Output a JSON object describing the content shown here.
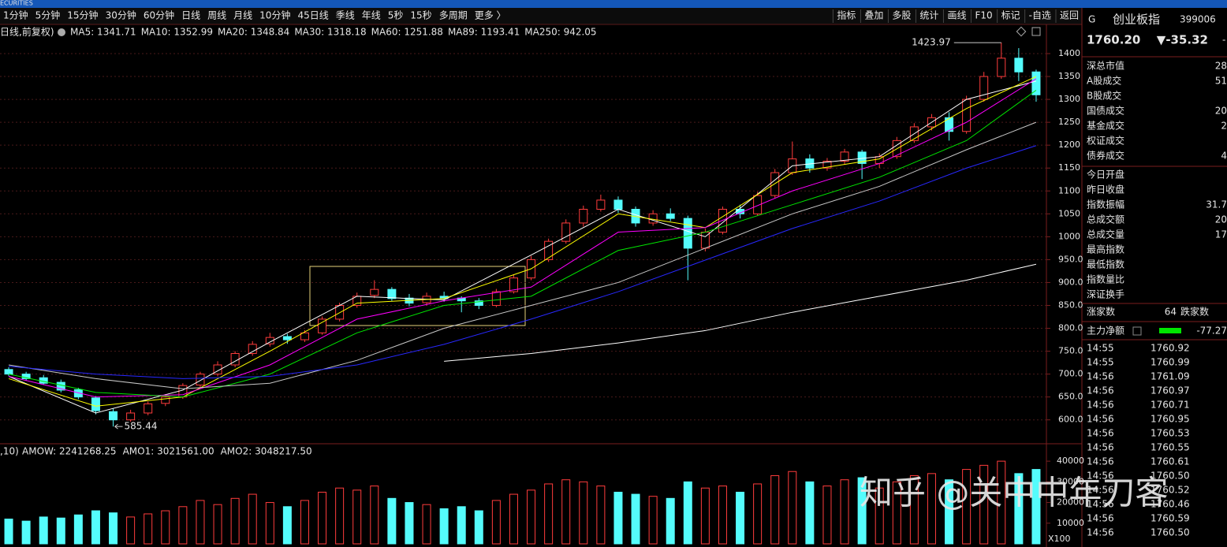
{
  "top_bar": {
    "brand": "ECURITIES"
  },
  "toolbar": {
    "periods": [
      "1分钟",
      "5分钟",
      "15分钟",
      "30分钟",
      "60分钟",
      "日线",
      "周线",
      "月线",
      "10分钟",
      "45日线",
      "季线",
      "年线",
      "5秒",
      "15秒",
      "多周期",
      "更多 〉"
    ],
    "tools": [
      "指标",
      "叠加",
      "多股",
      "统计",
      "画线",
      "F10",
      "标记",
      "-自选",
      "返回"
    ]
  },
  "chart_data": [
    {
      "type": "candlestick",
      "legend_prefix": "日线,前复权)",
      "ylim": [
        553,
        1431
      ],
      "yticks": [
        {
          "value": 600,
          "label": "600.0"
        },
        {
          "value": 650,
          "label": "650.0"
        },
        {
          "value": 700,
          "label": "700.0"
        },
        {
          "value": 750,
          "label": "750.0"
        },
        {
          "value": 800,
          "label": "800.0"
        },
        {
          "value": 850,
          "label": "850.0"
        },
        {
          "value": 900,
          "label": "900.0"
        },
        {
          "value": 950,
          "label": "950.0"
        },
        1000,
        1050,
        1100,
        1150,
        1200,
        1250,
        1300,
        1350,
        1400
      ],
      "grid": true,
      "up_color": "#ff3c3c",
      "down_color": "#54fcfc",
      "candles": [
        [
          710,
          715,
          696,
          700
        ],
        [
          700,
          705,
          686,
          690
        ],
        [
          692,
          698,
          676,
          680
        ],
        [
          682,
          688,
          660,
          665
        ],
        [
          666,
          670,
          645,
          650
        ],
        [
          648,
          652,
          612,
          620
        ],
        [
          618,
          625,
          585.44,
          600
        ],
        [
          600,
          622,
          596,
          615
        ],
        [
          615,
          640,
          610,
          635
        ],
        [
          636,
          656,
          630,
          650
        ],
        [
          650,
          680,
          646,
          675
        ],
        [
          676,
          705,
          670,
          700
        ],
        [
          700,
          728,
          695,
          720
        ],
        [
          720,
          750,
          715,
          745
        ],
        [
          745,
          772,
          740,
          765
        ],
        [
          766,
          790,
          760,
          780
        ],
        [
          782,
          788,
          766,
          775
        ],
        [
          775,
          796,
          770,
          790
        ],
        [
          790,
          826,
          786,
          820
        ],
        [
          820,
          856,
          815,
          850
        ],
        [
          850,
          878,
          845,
          870
        ],
        [
          872,
          905,
          866,
          885
        ],
        [
          885,
          890,
          860,
          865
        ],
        [
          866,
          875,
          848,
          855
        ],
        [
          856,
          878,
          850,
          870
        ],
        [
          870,
          880,
          858,
          865
        ],
        [
          866,
          870,
          835,
          860
        ],
        [
          860,
          866,
          842,
          850
        ],
        [
          850,
          886,
          846,
          880
        ],
        [
          880,
          918,
          876,
          910
        ],
        [
          910,
          958,
          905,
          950
        ],
        [
          950,
          996,
          945,
          990
        ],
        [
          990,
          1038,
          985,
          1030
        ],
        [
          1030,
          1068,
          1022,
          1060
        ],
        [
          1060,
          1092,
          1055,
          1080
        ],
        [
          1080,
          1088,
          1052,
          1060
        ],
        [
          1060,
          1066,
          1022,
          1030
        ],
        [
          1030,
          1058,
          1024,
          1050
        ],
        [
          1050,
          1062,
          1034,
          1040
        ],
        [
          1040,
          1046,
          905,
          975
        ],
        [
          975,
          1018,
          968,
          1010
        ],
        [
          1010,
          1066,
          1005,
          1060
        ],
        [
          1060,
          1070,
          1040,
          1050
        ],
        [
          1050,
          1098,
          1046,
          1090
        ],
        [
          1090,
          1148,
          1085,
          1140
        ],
        [
          1140,
          1208,
          1135,
          1170
        ],
        [
          1170,
          1180,
          1140,
          1150
        ],
        [
          1150,
          1172,
          1144,
          1165
        ],
        [
          1165,
          1192,
          1158,
          1185
        ],
        [
          1185,
          1190,
          1126,
          1160
        ],
        [
          1160,
          1182,
          1150,
          1175
        ],
        [
          1175,
          1218,
          1170,
          1210
        ],
        [
          1210,
          1248,
          1205,
          1240
        ],
        [
          1240,
          1268,
          1232,
          1260
        ],
        [
          1260,
          1272,
          1210,
          1230
        ],
        [
          1230,
          1308,
          1225,
          1300
        ],
        [
          1300,
          1360,
          1295,
          1350
        ],
        [
          1350,
          1423.97,
          1345,
          1390
        ],
        [
          1390,
          1412,
          1340,
          1360
        ],
        [
          1360,
          1365,
          1295,
          1310
        ]
      ],
      "x": [
        0,
        5,
        10,
        15,
        20,
        25,
        30,
        35,
        40,
        45,
        50,
        55,
        59
      ],
      "series": [
        {
          "label": "MA5: 1341.71",
          "color": "#ffffff",
          "values": [
            695,
            615,
            665,
            770,
            870,
            862,
            960,
            1060,
            1000,
            1155,
            1175,
            1300,
            1340
          ]
        },
        {
          "label": "MA10: 1352.99",
          "color": "#ffff00",
          "values": [
            690,
            630,
            650,
            750,
            855,
            865,
            930,
            1050,
            1020,
            1140,
            1170,
            1280,
            1350
          ]
        },
        {
          "label": "MA20: 1348.84",
          "color": "#ff00ff",
          "values": [
            695,
            650,
            655,
            720,
            820,
            860,
            890,
            1010,
            1020,
            1100,
            1160,
            1250,
            1345
          ]
        },
        {
          "label": "MA30: 1318.18",
          "color": "#00e600",
          "values": [
            700,
            660,
            650,
            700,
            790,
            850,
            870,
            970,
            1010,
            1070,
            1130,
            1210,
            1320
          ]
        },
        {
          "label": "MA60: 1251.88",
          "color": "#c8c8c8",
          "values": [
            720,
            690,
            668,
            680,
            730,
            800,
            850,
            900,
            975,
            1050,
            1110,
            1190,
            1250
          ]
        },
        {
          "label": "MA89: 1193.41",
          "color": "#2828ff",
          "values": [
            717,
            700,
            690,
            695,
            720,
            765,
            820,
            880,
            949,
            1018,
            1078,
            1150,
            1199
          ]
        },
        {
          "label": "MA250: 942.05",
          "color": "#ffffff",
          "values": [
            null,
            null,
            null,
            null,
            null,
            728,
            745,
            768,
            795,
            835,
            870,
            905,
            940
          ]
        }
      ],
      "annotations": [
        {
          "value": 1423.97,
          "label": "1423.97"
        },
        {
          "value": 585.44,
          "label": "585.44"
        }
      ]
    },
    {
      "type": "bar",
      "legend_prefix": ",10)",
      "legend": [
        {
          "label": "AMOW: 2241268.25",
          "color": "#ffffff"
        },
        {
          "label": "AMO1: 3021561.00",
          "color": "#ffffff"
        },
        {
          "label": "AMO2: 3048217.50",
          "color": "#ffff00"
        }
      ],
      "ylim": [
        0,
        45000
      ],
      "yticks": [
        10000,
        20000,
        30000,
        40000
      ],
      "unit_label": "X100",
      "values": [
        12000,
        11000,
        13000,
        12500,
        14000,
        16000,
        15000,
        13000,
        14500,
        16000,
        18000,
        21000,
        19000,
        22000,
        24000,
        20000,
        18000,
        21000,
        25000,
        27000,
        26000,
        28000,
        22000,
        20000,
        19000,
        17000,
        18000,
        16000,
        21000,
        24000,
        26000,
        29000,
        31000,
        30000,
        28000,
        25000,
        24000,
        23000,
        22000,
        30000,
        27000,
        28000,
        25000,
        29000,
        33000,
        35000,
        30000,
        28000,
        31000,
        32000,
        27000,
        30000,
        33000,
        34000,
        31000,
        36000,
        38000,
        40000,
        34000,
        36000
      ]
    }
  ],
  "quote_panel": {
    "flag": "G",
    "name": "创业板指",
    "code": "399006",
    "price": "1760.20",
    "change": "▼-35.32",
    "change_more": "-",
    "stats": [
      {
        "label": "深总市值",
        "value": "28"
      },
      {
        "label": "A股成交",
        "value": "51"
      },
      {
        "label": "B股成交"
      },
      {
        "label": "国债成交",
        "value": "20"
      },
      {
        "label": "基金成交",
        "value": "2"
      },
      {
        "label": "权证成交"
      },
      {
        "label": "债券成交",
        "value": "4"
      }
    ],
    "session": [
      {
        "label": "今日开盘"
      },
      {
        "label": "昨日收盘"
      },
      {
        "label": "指数振幅",
        "value": "31.7"
      },
      {
        "label": "总成交额",
        "value": "20"
      },
      {
        "label": "总成交量",
        "value": "17"
      },
      {
        "label": "最高指数"
      },
      {
        "label": "最低指数"
      },
      {
        "label": "指数量比"
      },
      {
        "label": "深证换手"
      }
    ],
    "breadth": {
      "up_label": "涨家数",
      "up": "64",
      "down_label": "跌家数"
    },
    "flow": {
      "label": "主力净额",
      "value": "-77.27"
    },
    "ticks": [
      [
        "14:55",
        "1760.92"
      ],
      [
        "14:55",
        "1760.99"
      ],
      [
        "14:56",
        "1761.09"
      ],
      [
        "14:56",
        "1760.97"
      ],
      [
        "14:56",
        "1760.71"
      ],
      [
        "14:56",
        "1760.95"
      ],
      [
        "14:56",
        "1760.53"
      ],
      [
        "14:56",
        "1760.55"
      ],
      [
        "14:56",
        "1760.61"
      ],
      [
        "14:56",
        "1760.50"
      ],
      [
        "14:56",
        "1760.52"
      ],
      [
        "14:56",
        "1760.46"
      ],
      [
        "14:56",
        "1760.59"
      ],
      [
        "14:56",
        "1760.50"
      ]
    ]
  },
  "watermark": "知乎 @关中中年刀客"
}
